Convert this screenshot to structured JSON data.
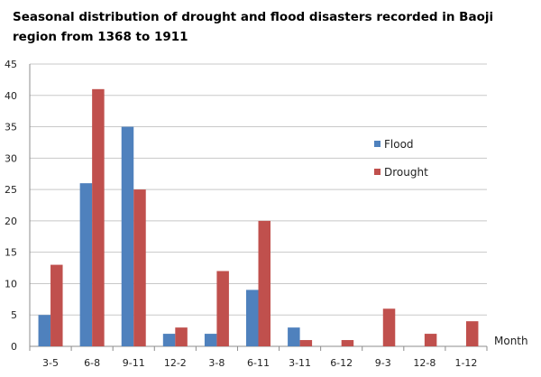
{
  "chart_data": {
    "type": "bar",
    "title": "Seasonal distribution of drought and flood disasters recorded in Baoji region from 1368 to 1911",
    "xlabel": "Month",
    "ylabel": "",
    "categories": [
      "3-5",
      "6-8",
      "9-11",
      "12-2",
      "3-8",
      "6-11",
      "3-11",
      "6-12",
      "9-3",
      "12-8",
      "1-12"
    ],
    "series": [
      {
        "name": "Flood",
        "color": "#4F81BD",
        "values": [
          5,
          26,
          35,
          2,
          2,
          9,
          3,
          0,
          0,
          0,
          0
        ]
      },
      {
        "name": "Drought",
        "color": "#C0504D",
        "values": [
          13,
          41,
          25,
          3,
          12,
          20,
          1,
          1,
          6,
          2,
          4
        ]
      }
    ],
    "ylim": [
      0,
      45
    ],
    "yticks": [
      0,
      5,
      10,
      15,
      20,
      25,
      30,
      35,
      40,
      45
    ],
    "grid": true,
    "legend_position": "right"
  }
}
